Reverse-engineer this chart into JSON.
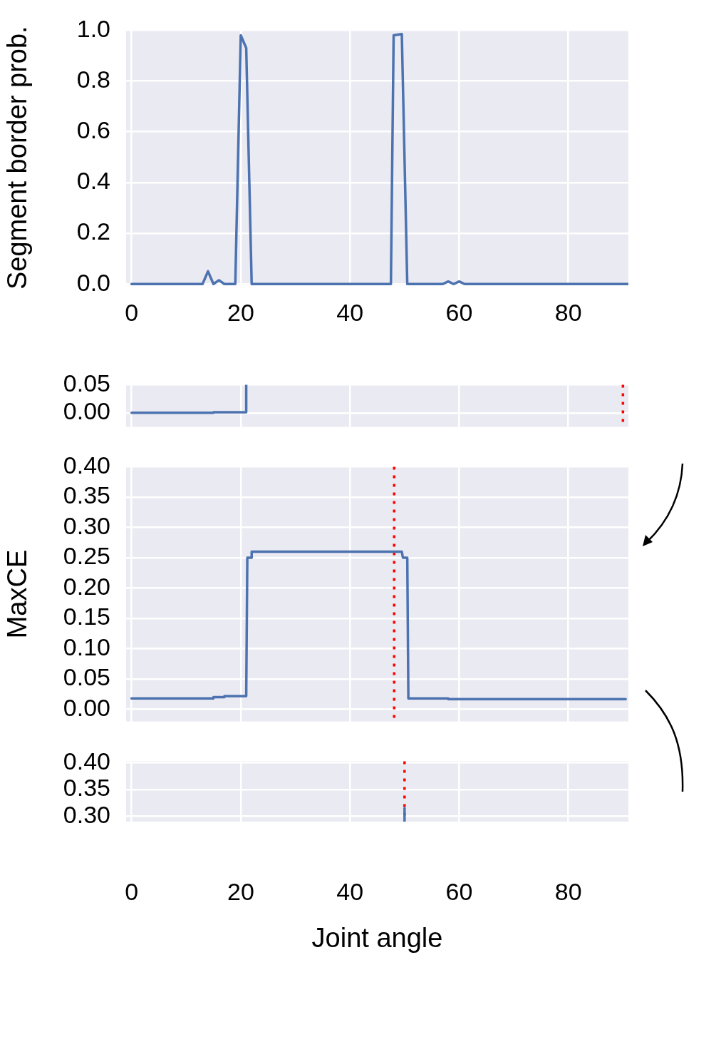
{
  "chart_data": [
    {
      "type": "line",
      "ylabel": "Segment border prob.",
      "xlim": [
        -1,
        91
      ],
      "ylim": [
        -0.005,
        1.0
      ],
      "xticks": [
        0,
        20,
        40,
        60,
        80
      ],
      "yticks": [
        {
          "value": 0,
          "label": "0.0"
        },
        0.2,
        0.4,
        0.6,
        0.8,
        {
          "value": 1,
          "label": "1.0"
        }
      ],
      "grid": true,
      "legend": false,
      "marker": "none",
      "series": [
        {
          "color": "#4c72b0",
          "x": [
            0,
            13,
            14,
            15,
            16,
            17,
            19,
            20,
            21,
            22,
            47.5,
            48,
            49.5,
            50.5,
            57,
            58,
            59,
            60,
            61,
            91
          ],
          "values": [
            0,
            0,
            0.05,
            0,
            0.015,
            0,
            0,
            0.98,
            0.93,
            0,
            0,
            0.98,
            0.985,
            0,
            0,
            0.01,
            0,
            0.01,
            0,
            0
          ]
        }
      ]
    },
    {
      "type": "line",
      "xlim": [
        -1,
        91
      ],
      "ylim": [
        -0.025,
        0.05
      ],
      "yticks": [
        {
          "value": 0,
          "label": "0.00"
        },
        0.05
      ],
      "grid": true,
      "legend": false,
      "marker": "none",
      "tick_labels": "y",
      "series": [
        {
          "color": "#4c72b0",
          "x": [
            0,
            15,
            15,
            21,
            21
          ],
          "values": [
            0,
            0,
            0.001,
            0.001,
            0.05
          ]
        }
      ],
      "ref_lines": [
        {
          "axis": "x",
          "value": 90,
          "color": "#ff0000",
          "line_style": "dotted"
        }
      ]
    },
    {
      "type": "line",
      "ylabel": "MaxCE",
      "xlim": [
        -1,
        91
      ],
      "ylim": [
        -0.02,
        0.4
      ],
      "yticks": [
        {
          "value": 0,
          "label": "0.00"
        },
        0.05,
        {
          "value": 0.1,
          "label": "0.10"
        },
        0.15,
        {
          "value": 0.2,
          "label": "0.20"
        },
        0.25,
        {
          "value": 0.3,
          "label": "0.30"
        },
        0.35,
        {
          "value": 0.4,
          "label": "0.40"
        }
      ],
      "grid": true,
      "legend": false,
      "marker": "none",
      "tick_labels": "y",
      "series": [
        {
          "color": "#4c72b0",
          "x": [
            0,
            15,
            15,
            17,
            17,
            21,
            21.2,
            22,
            22,
            49.5,
            49.7,
            50.5,
            50.7,
            58,
            58,
            90.5
          ],
          "values": [
            0.018,
            0.018,
            0.02,
            0.02,
            0.022,
            0.022,
            0.25,
            0.25,
            0.26,
            0.26,
            0.25,
            0.25,
            0.018,
            0.018,
            0.017,
            0.017
          ]
        }
      ],
      "ref_lines": [
        {
          "axis": "x",
          "value": 48.1,
          "color": "#ff0000",
          "line_style": "dotted"
        }
      ]
    },
    {
      "type": "line",
      "xlabel": "Joint angle",
      "xlim": [
        -1,
        91
      ],
      "ylim": [
        0.29,
        0.403
      ],
      "xticks": [
        0,
        20,
        40,
        60,
        80
      ],
      "yticks": [
        {
          "value": 0.3,
          "label": "0.30"
        },
        0.35,
        {
          "value": 0.4,
          "label": "0.40"
        }
      ],
      "grid": true,
      "legend": false,
      "marker": "none",
      "series": [
        {
          "color": "#4c72b0",
          "x": [
            50,
            50
          ],
          "values": [
            0.29,
            0.315
          ]
        }
      ],
      "ref_lines": [
        {
          "axis": "x",
          "value": 50,
          "color": "#ff0000",
          "line_style": "dotted"
        }
      ]
    }
  ]
}
